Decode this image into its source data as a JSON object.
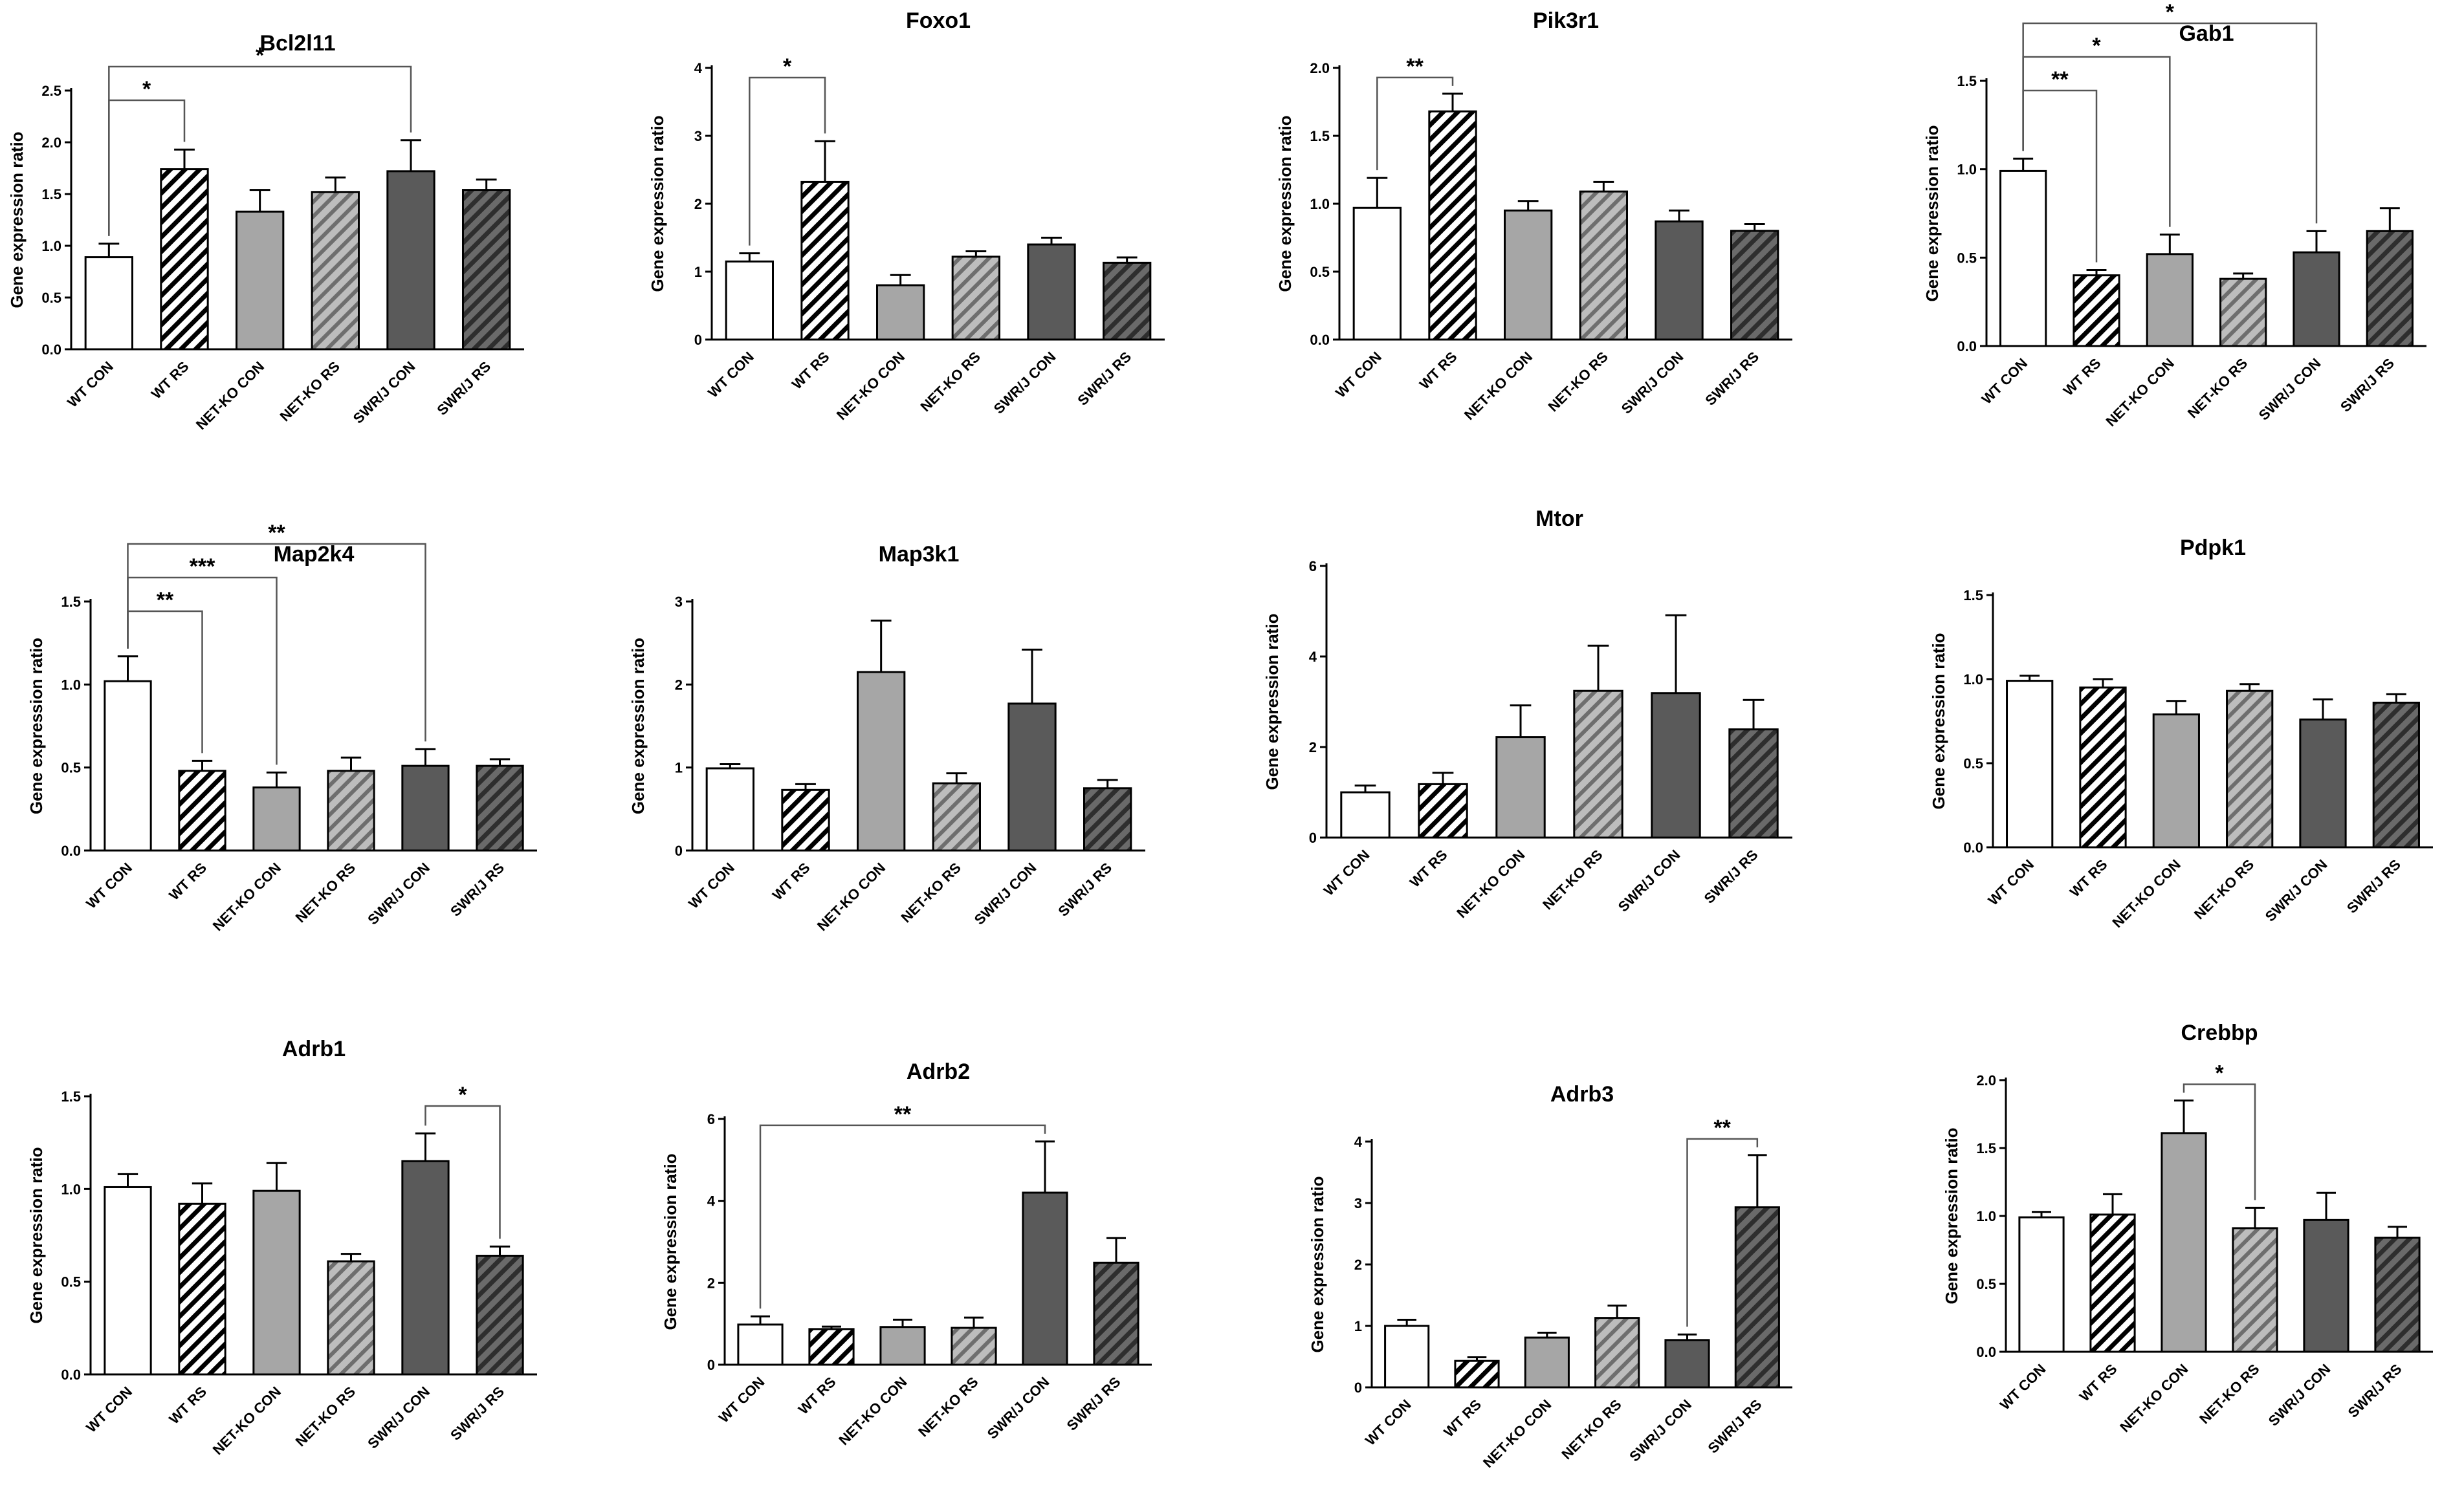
{
  "figure": {
    "categories": [
      "WT CON",
      "WT RS",
      "NET-KO CON",
      "NET-KO RS",
      "SWR/J CON",
      "SWR/J RS"
    ],
    "ylabel": "Gene expression ratio",
    "colors": {
      "wt_con": "#ffffff",
      "wt_rs_hatch": "#000000",
      "netko_con": "#a6a6a6",
      "netko_rs": "#a6a6a6",
      "swrj_con": "#5a5a5a",
      "swrj_rs": "#4a4a4a",
      "outline": "#000000"
    }
  },
  "chart_data": [
    {
      "type": "bar",
      "title": "Bcl2l11",
      "ylabel": "Gene expression ratio",
      "ylim": [
        0,
        2.5
      ],
      "yticks": [
        "0.0",
        "0.5",
        "1.0",
        "1.5",
        "2.0",
        "2.5"
      ],
      "tick_values": [
        0,
        0.5,
        1.0,
        1.5,
        2.0,
        2.5
      ],
      "categories": [
        "WT CON",
        "WT RS",
        "NET-KO CON",
        "NET-KO RS",
        "SWR/J CON",
        "SWR/J RS"
      ],
      "values": [
        0.89,
        1.74,
        1.33,
        1.52,
        1.72,
        1.54
      ],
      "errors": [
        0.13,
        0.19,
        0.21,
        0.14,
        0.3,
        0.1
      ],
      "annotations": [
        {
          "from": 0,
          "to": 1,
          "label": "*"
        },
        {
          "from": 0,
          "to": 4,
          "label": "*"
        }
      ]
    },
    {
      "type": "bar",
      "title": "Foxo1",
      "ylabel": "Gene expression ratio",
      "ylim": [
        0,
        4
      ],
      "yticks": [
        "0",
        "1",
        "2",
        "3",
        "4"
      ],
      "tick_values": [
        0,
        1,
        2,
        3,
        4
      ],
      "categories": [
        "WT CON",
        "WT RS",
        "NET-KO CON",
        "NET-KO RS",
        "SWR/J CON",
        "SWR/J RS"
      ],
      "values": [
        1.15,
        2.32,
        0.8,
        1.22,
        1.4,
        1.13
      ],
      "errors": [
        0.12,
        0.6,
        0.15,
        0.08,
        0.1,
        0.08
      ],
      "annotations": [
        {
          "from": 0,
          "to": 1,
          "label": "*"
        }
      ]
    },
    {
      "type": "bar",
      "title": "Pik3r1",
      "ylabel": "Gene expression ratio",
      "ylim": [
        0,
        2.0
      ],
      "yticks": [
        "0.0",
        "0.5",
        "1.0",
        "1.5",
        "2.0"
      ],
      "tick_values": [
        0,
        0.5,
        1.0,
        1.5,
        2.0
      ],
      "categories": [
        "WT CON",
        "WT RS",
        "NET-KO CON",
        "NET-KO RS",
        "SWR/J CON",
        "SWR/J RS"
      ],
      "values": [
        0.97,
        1.68,
        0.95,
        1.09,
        0.87,
        0.8
      ],
      "errors": [
        0.22,
        0.13,
        0.07,
        0.07,
        0.08,
        0.05
      ],
      "annotations": [
        {
          "from": 0,
          "to": 1,
          "label": "**"
        }
      ]
    },
    {
      "type": "bar",
      "title": "Gab1",
      "ylabel": "Gene expression ratio",
      "ylim": [
        0,
        1.5
      ],
      "yticks": [
        "0.0",
        "0.5",
        "1.0",
        "1.5"
      ],
      "tick_values": [
        0,
        0.5,
        1.0,
        1.5
      ],
      "categories": [
        "WT CON",
        "WT RS",
        "NET-KO CON",
        "NET-KO RS",
        "SWR/J CON",
        "SWR/J RS"
      ],
      "values": [
        0.99,
        0.4,
        0.52,
        0.38,
        0.53,
        0.65
      ],
      "errors": [
        0.07,
        0.03,
        0.11,
        0.03,
        0.12,
        0.13
      ],
      "annotations": [
        {
          "from": 0,
          "to": 1,
          "label": "**"
        },
        {
          "from": 0,
          "to": 2,
          "label": "*"
        },
        {
          "from": 0,
          "to": 4,
          "label": "*"
        }
      ]
    },
    {
      "type": "bar",
      "title": "Map2k4",
      "ylabel": "Gene expression ratio",
      "ylim": [
        0,
        1.5
      ],
      "yticks": [
        "0.0",
        "0.5",
        "1.0",
        "1.5"
      ],
      "tick_values": [
        0,
        0.5,
        1.0,
        1.5
      ],
      "categories": [
        "WT CON",
        "WT RS",
        "NET-KO CON",
        "NET-KO RS",
        "SWR/J CON",
        "SWR/J RS"
      ],
      "values": [
        1.02,
        0.48,
        0.38,
        0.48,
        0.51,
        0.51
      ],
      "errors": [
        0.15,
        0.06,
        0.09,
        0.08,
        0.1,
        0.04
      ],
      "annotations": [
        {
          "from": 0,
          "to": 1,
          "label": "**"
        },
        {
          "from": 0,
          "to": 2,
          "label": "***"
        },
        {
          "from": 0,
          "to": 4,
          "label": "**"
        }
      ]
    },
    {
      "type": "bar",
      "title": "Map3k1",
      "ylabel": "Gene expression ratio",
      "ylim": [
        0,
        3
      ],
      "yticks": [
        "0",
        "1",
        "2",
        "3"
      ],
      "tick_values": [
        0,
        1,
        2,
        3
      ],
      "categories": [
        "WT CON",
        "WT RS",
        "NET-KO CON",
        "NET-KO RS",
        "SWR/J CON",
        "SWR/J RS"
      ],
      "values": [
        0.99,
        0.73,
        2.15,
        0.81,
        1.77,
        0.75
      ],
      "errors": [
        0.05,
        0.07,
        0.62,
        0.12,
        0.65,
        0.1
      ],
      "annotations": []
    },
    {
      "type": "bar",
      "title": "Mtor",
      "ylabel": "Gene expression ratio",
      "ylim": [
        0,
        6
      ],
      "yticks": [
        "0",
        "2",
        "4",
        "6"
      ],
      "tick_values": [
        0,
        2,
        4,
        6
      ],
      "categories": [
        "WT CON",
        "WT RS",
        "NET-KO CON",
        "NET-KO RS",
        "SWR/J CON",
        "SWR/J RS"
      ],
      "values": [
        1.0,
        1.18,
        2.22,
        3.24,
        3.19,
        2.39
      ],
      "errors": [
        0.15,
        0.25,
        0.7,
        1.0,
        1.72,
        0.65
      ],
      "annotations": []
    },
    {
      "type": "bar",
      "title": "Pdpk1",
      "ylabel": "Gene expression ratio",
      "ylim": [
        0,
        1.5
      ],
      "yticks": [
        "0.0",
        "0.5",
        "1.0",
        "1.5"
      ],
      "tick_values": [
        0,
        0.5,
        1.0,
        1.5
      ],
      "categories": [
        "WT CON",
        "WT RS",
        "NET-KO CON",
        "NET-KO RS",
        "SWR/J CON",
        "SWR/J RS"
      ],
      "values": [
        0.99,
        0.95,
        0.79,
        0.93,
        0.76,
        0.86
      ],
      "errors": [
        0.03,
        0.05,
        0.08,
        0.04,
        0.12,
        0.05
      ],
      "annotations": []
    },
    {
      "type": "bar",
      "title": "Adrb1",
      "ylabel": "Gene expression ratio",
      "ylim": [
        0,
        1.5
      ],
      "yticks": [
        "0.0",
        "0.5",
        "1.0",
        "1.5"
      ],
      "tick_values": [
        0,
        0.5,
        1.0,
        1.5
      ],
      "categories": [
        "WT CON",
        "WT RS",
        "NET-KO CON",
        "NET-KO RS",
        "SWR/J CON",
        "SWR/J RS"
      ],
      "values": [
        1.01,
        0.92,
        0.99,
        0.61,
        1.15,
        0.64
      ],
      "errors": [
        0.07,
        0.11,
        0.15,
        0.04,
        0.15,
        0.05
      ],
      "annotations": [
        {
          "from": 4,
          "to": 5,
          "label": "*"
        }
      ]
    },
    {
      "type": "bar",
      "title": "Adrb2",
      "ylabel": "Gene expression ratio",
      "ylim": [
        0,
        6
      ],
      "yticks": [
        "0",
        "2",
        "4",
        "6"
      ],
      "tick_values": [
        0,
        2,
        4,
        6
      ],
      "categories": [
        "WT CON",
        "WT RS",
        "NET-KO CON",
        "NET-KO RS",
        "SWR/J CON",
        "SWR/J RS"
      ],
      "values": [
        0.98,
        0.87,
        0.92,
        0.9,
        4.2,
        2.49
      ],
      "errors": [
        0.2,
        0.06,
        0.18,
        0.25,
        1.25,
        0.6
      ],
      "annotations": [
        {
          "from": 0,
          "to": 4,
          "label": "**"
        }
      ]
    },
    {
      "type": "bar",
      "title": "Adrb3",
      "ylabel": "Gene expression ratio",
      "ylim": [
        0,
        4
      ],
      "yticks": [
        "0",
        "1",
        "2",
        "3",
        "4"
      ],
      "tick_values": [
        0,
        1,
        2,
        3,
        4
      ],
      "categories": [
        "WT CON",
        "WT RS",
        "NET-KO CON",
        "NET-KO RS",
        "SWR/J CON",
        "SWR/J RS"
      ],
      "values": [
        1.0,
        0.43,
        0.81,
        1.13,
        0.77,
        2.93
      ],
      "errors": [
        0.1,
        0.06,
        0.08,
        0.2,
        0.09,
        0.85
      ],
      "annotations": [
        {
          "from": 4,
          "to": 5,
          "label": "**"
        }
      ]
    },
    {
      "type": "bar",
      "title": "Crebbp",
      "ylabel": "Gene expression ratio",
      "ylim": [
        0,
        2.0
      ],
      "yticks": [
        "0.0",
        "0.5",
        "1.0",
        "1.5",
        "2.0"
      ],
      "tick_values": [
        0,
        0.5,
        1.0,
        1.5,
        2.0
      ],
      "categories": [
        "WT CON",
        "WT RS",
        "NET-KO CON",
        "NET-KO RS",
        "SWR/J CON",
        "SWR/J RS"
      ],
      "values": [
        0.99,
        1.01,
        1.61,
        0.91,
        0.97,
        0.84
      ],
      "errors": [
        0.04,
        0.15,
        0.24,
        0.15,
        0.2,
        0.08
      ],
      "annotations": [
        {
          "from": 2,
          "to": 3,
          "label": "*"
        }
      ]
    }
  ]
}
